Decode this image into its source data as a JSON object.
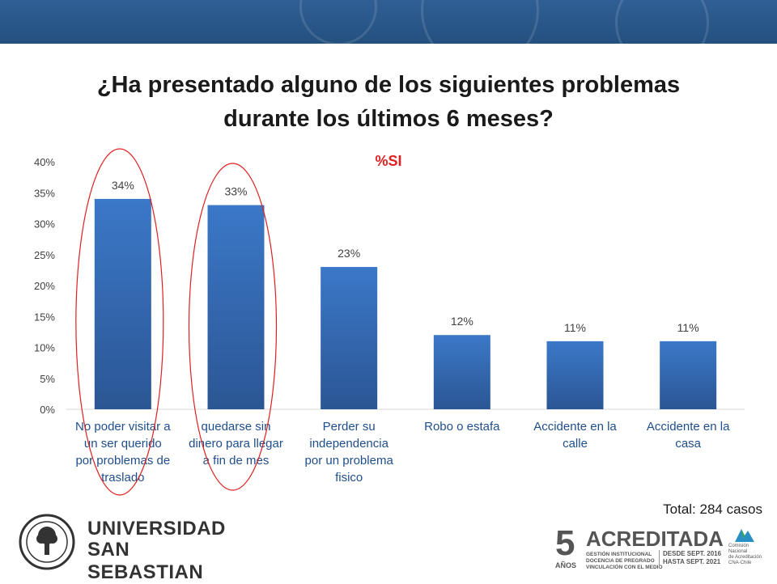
{
  "title_line1": "¿Ha presentado alguno de los siguientes problemas",
  "title_line2": "durante los últimos 6 meses?",
  "total": "Total: 284 casos",
  "logo_left": {
    "line1": "UNIVERSIDAD",
    "line2": "SAN SEBASTIAN"
  },
  "logo_right": {
    "big_number": "5",
    "anos": "AÑOS",
    "main": "ACREDITADA",
    "sub1": "GESTIÓN INSTITUCIONAL",
    "sub2": "DOCENCIA DE PREGRADO",
    "sub3": "VINCULACIÓN CON EL MEDIO",
    "date1": "DESDE SEPT. 2016",
    "date2": "HASTA SEPT. 2021",
    "cna1": "Comisión Nacional",
    "cna2": "de Acreditación",
    "cna3": "CNA-Chile"
  },
  "colors": {
    "bar_top": "#3b78c8",
    "bar_bottom": "#2b5694",
    "highlight_ellipse": "#e02020",
    "series_title": "#e02020",
    "banner": "#2a5a8c"
  },
  "chart_data": {
    "type": "bar",
    "title": "%SI",
    "categories": [
      [
        "No poder visitar a",
        "un ser querido",
        "por problemas de",
        "traslado"
      ],
      [
        "quedarse sin",
        "dinero para llegar",
        "a fin de mes"
      ],
      [
        "Perder su",
        "independencia",
        "por un problema",
        "fisico"
      ],
      [
        "Robo o estafa"
      ],
      [
        "Accidente en la",
        "calle"
      ],
      [
        "Accidente en la",
        "casa"
      ]
    ],
    "values": [
      34,
      33,
      23,
      12,
      11,
      11
    ],
    "data_labels": [
      "34%",
      "33%",
      "23%",
      "12%",
      "11%",
      "11%"
    ],
    "ylim": [
      0,
      40
    ],
    "yticks": [
      "0%",
      "5%",
      "10%",
      "15%",
      "20%",
      "25%",
      "30%",
      "35%",
      "40%"
    ],
    "ytick_values": [
      0,
      5,
      10,
      15,
      20,
      25,
      30,
      35,
      40
    ],
    "highlighted_categories": [
      0,
      1
    ],
    "grid": false,
    "legend": "none"
  }
}
